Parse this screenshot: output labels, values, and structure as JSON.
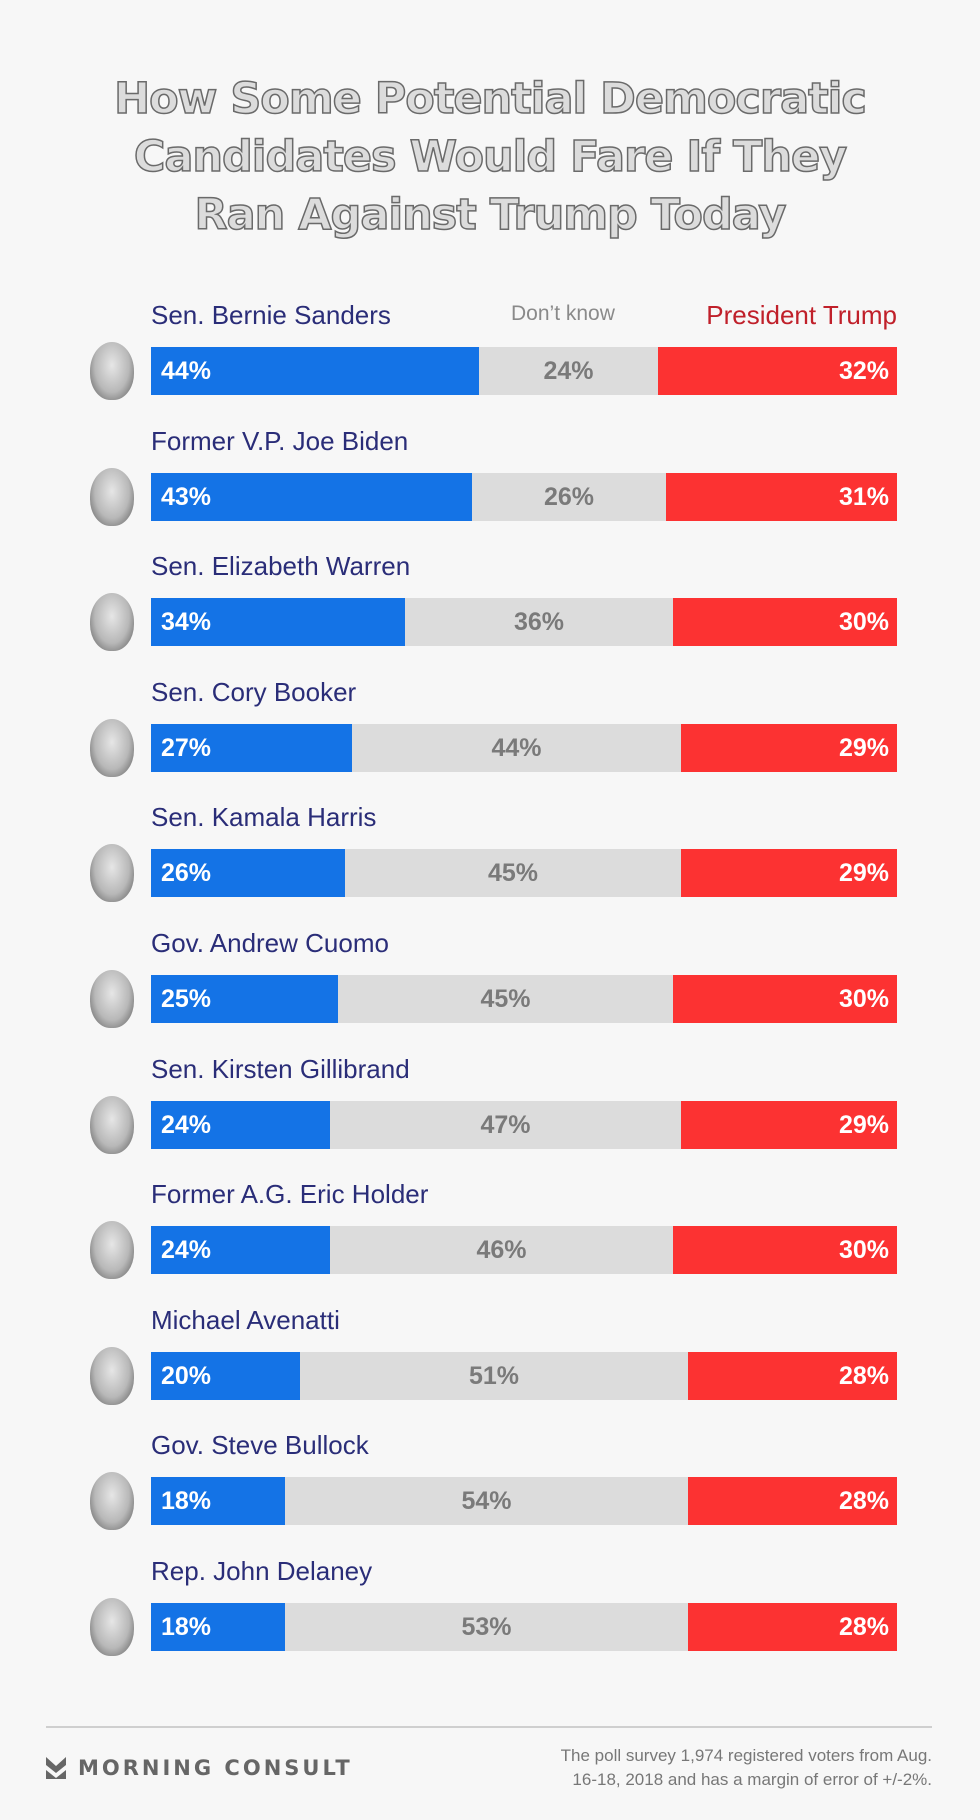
{
  "chart_data": {
    "type": "bar",
    "stacked": true,
    "orientation": "horizontal",
    "title": "How Some Potential Democratic Candidates Would Fare If They Ran Against Trump Today",
    "title_lines": [
      "How Some Potential Democratic",
      "Candidates Would Fare If They",
      "Ran Against Trump Today"
    ],
    "legend": {
      "dont_know": "Don’t know",
      "trump": "President Trump"
    },
    "colors": {
      "democrat": "#1473e6",
      "dont_know": "#dcdcdc",
      "trump": "#fc3232"
    },
    "categories": [
      "Sen. Bernie Sanders",
      "Former V.P. Joe Biden",
      "Sen. Elizabeth Warren",
      "Sen. Cory Booker",
      "Sen. Kamala Harris",
      "Gov. Andrew Cuomo",
      "Sen. Kirsten Gillibrand",
      "Former A.G. Eric Holder",
      "Michael Avenatti",
      "Gov. Steve Bullock",
      "Rep. John Delaney"
    ],
    "series": [
      {
        "key": "democrat",
        "values": [
          44,
          43,
          34,
          27,
          26,
          25,
          24,
          24,
          20,
          18,
          18
        ]
      },
      {
        "key": "dont_know",
        "name": "Don’t know",
        "values": [
          24,
          26,
          36,
          44,
          45,
          45,
          47,
          46,
          51,
          54,
          53
        ]
      },
      {
        "key": "trump",
        "name": "President Trump",
        "values": [
          32,
          31,
          30,
          29,
          29,
          30,
          29,
          30,
          28,
          28,
          28
        ]
      }
    ],
    "xlim": [
      0,
      100
    ]
  },
  "footer": {
    "brand": "MORNING CONSULT",
    "note_lines": [
      "The poll survey 1,974 registered voters from Aug.",
      "16-18, 2018 and has a margin of error of +/-2%."
    ]
  }
}
